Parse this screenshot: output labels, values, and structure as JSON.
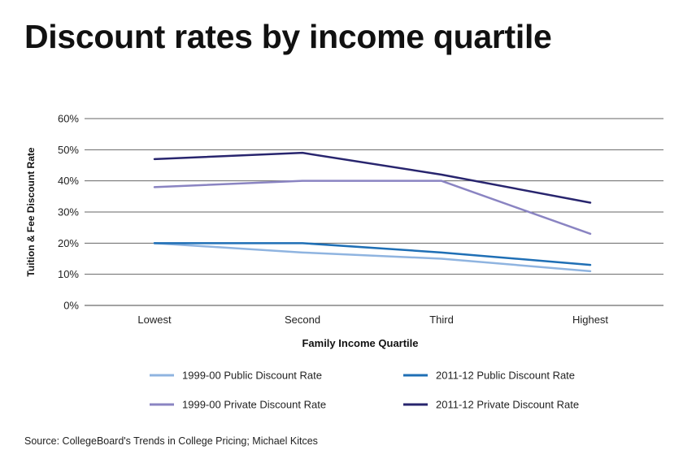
{
  "title": "Discount rates by income quartile",
  "source": "Source: CollegeBoard's Trends in College Pricing; Michael Kitces",
  "chart_data": {
    "type": "line",
    "title": "Discount rates by income quartile",
    "xlabel": "Family Income Quartile",
    "ylabel": "Tuition & Fee Discount Rate",
    "categories": [
      "Lowest",
      "Second",
      "Third",
      "Highest"
    ],
    "ylim": [
      0,
      60
    ],
    "yticks": [
      0,
      10,
      20,
      30,
      40,
      50,
      60
    ],
    "ytick_labels": [
      "0%",
      "10%",
      "20%",
      "30%",
      "40%",
      "50%",
      "60%"
    ],
    "grid": true,
    "legend_position": "bottom",
    "series": [
      {
        "name": "1999-00 Public Discount Rate",
        "color": "#8fb4e0",
        "values": [
          20,
          17,
          15,
          11
        ]
      },
      {
        "name": "2011-12 Public Discount Rate",
        "color": "#1f6fb5",
        "values": [
          20,
          20,
          17,
          13
        ]
      },
      {
        "name": "1999-00 Private Discount Rate",
        "color": "#8a84c2",
        "values": [
          38,
          40,
          40,
          23
        ]
      },
      {
        "name": "2011-12 Private Discount Rate",
        "color": "#28256e",
        "values": [
          47,
          49,
          42,
          33
        ]
      }
    ]
  }
}
